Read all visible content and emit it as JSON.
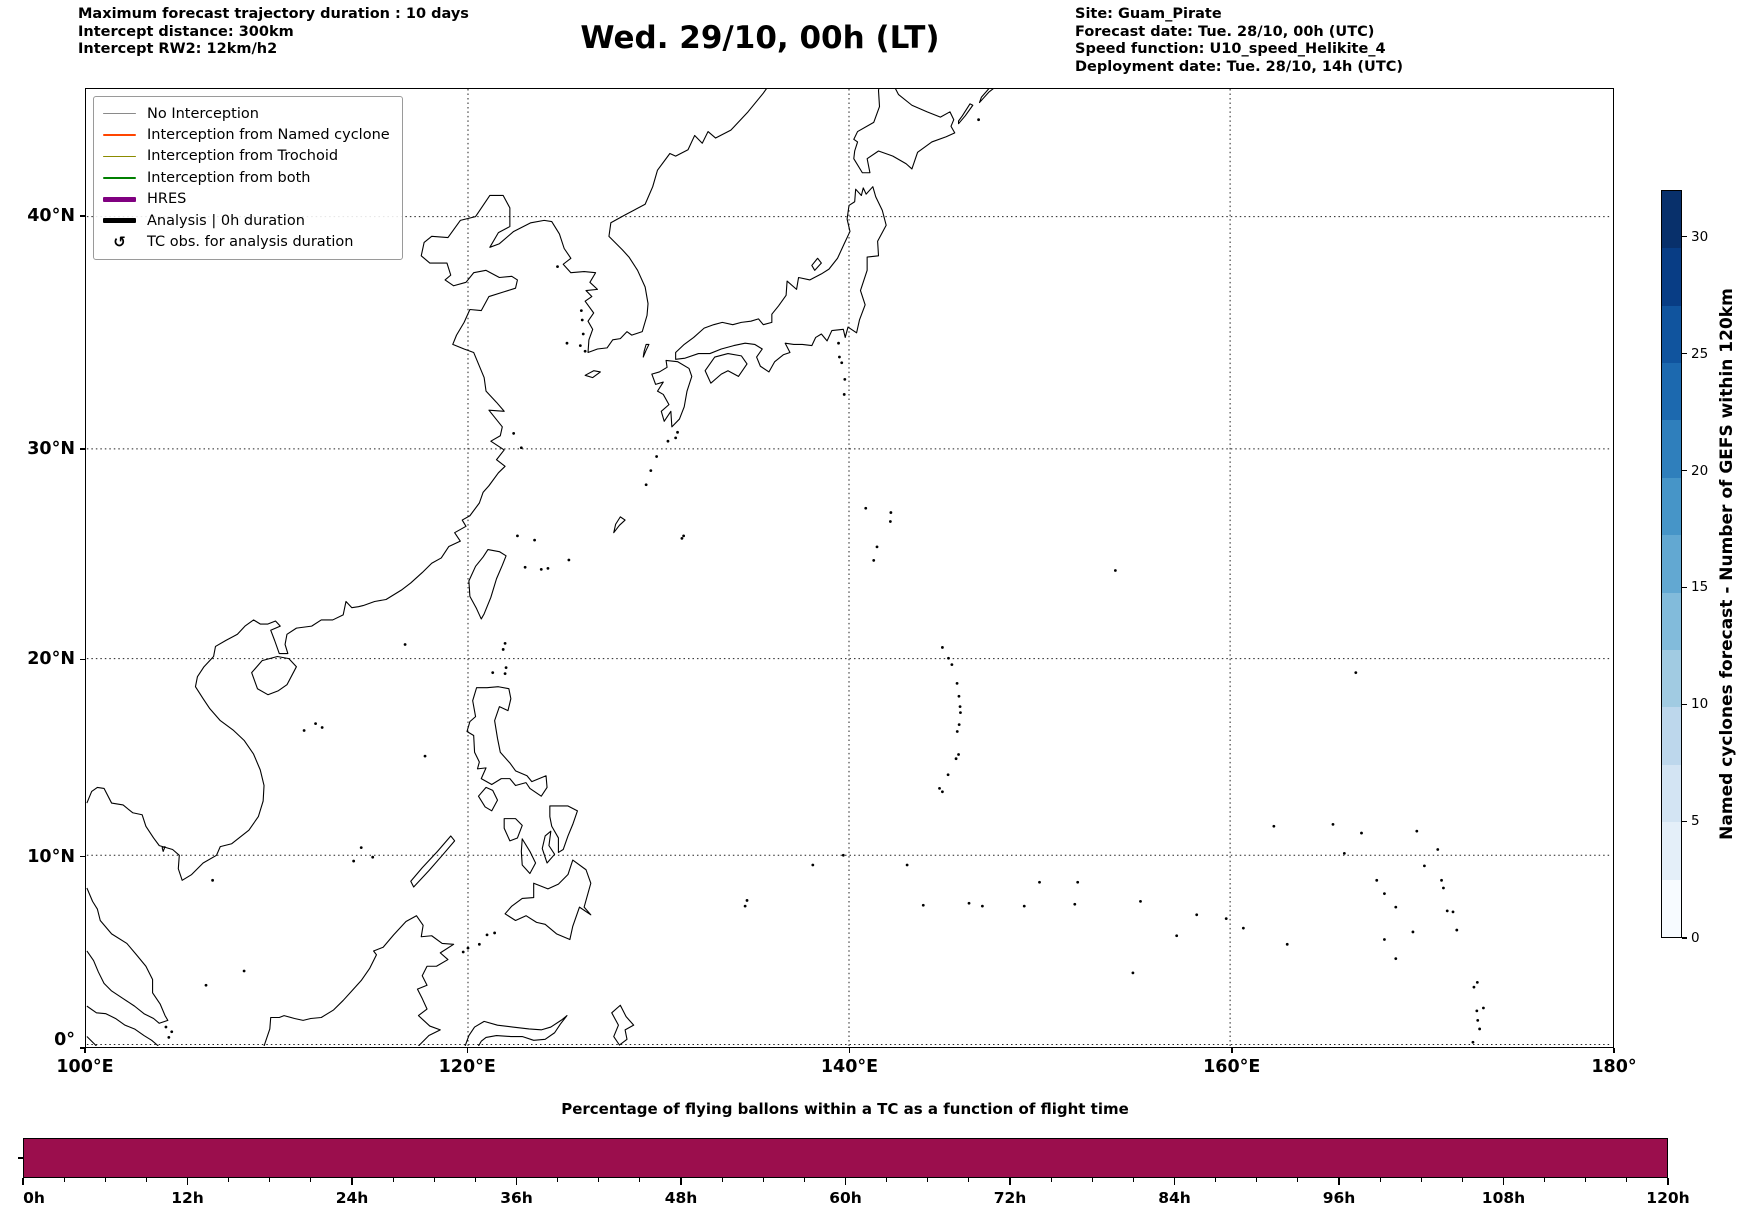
{
  "header": {
    "info_left": {
      "line1": "Maximum forecast trajectory duration : 10 days",
      "line2": "Intercept distance: 300km",
      "line3": "Intercept RW2: 12km/h2"
    },
    "title": "Wed. 29/10, 00h (LT)",
    "info_right": {
      "line1": "Site: Guam_Pirate",
      "line2": "Forecast date: Tue. 28/10, 00h (UTC)",
      "line3": "Speed function: U10_speed_Helikite_4",
      "line4": "Deployment date: Tue. 28/10, 14h (UTC)"
    }
  },
  "map": {
    "legend": {
      "items": [
        {
          "label": "No Interception",
          "sample": "line",
          "color": "#8a8a8a",
          "weight": 1.5
        },
        {
          "label": "Interception from Named cyclone",
          "sample": "line",
          "color": "#ff4500",
          "weight": 1.5
        },
        {
          "label": "Interception from Trochoid",
          "sample": "line",
          "color": "#8b8b00",
          "weight": 1.5
        },
        {
          "label": "Interception from both",
          "sample": "line",
          "color": "#007f00",
          "weight": 1.5
        },
        {
          "label": "HRES",
          "sample": "line",
          "color": "#800080",
          "weight": 5
        },
        {
          "label": "Analysis | 0h duration",
          "sample": "line",
          "color": "#000000",
          "weight": 5
        },
        {
          "label": "TC obs. for analysis duration",
          "sample": "symbol",
          "symbol": "↺",
          "color": "#000000"
        }
      ]
    },
    "y_ticks": [
      {
        "label": "40°N",
        "lat": 40
      },
      {
        "label": "30°N",
        "lat": 30
      },
      {
        "label": "20°N",
        "lat": 20
      },
      {
        "label": "10°N",
        "lat": 10
      },
      {
        "label": "0°",
        "lat": 0
      }
    ],
    "x_ticks": [
      {
        "label": "100°E",
        "lon": 100
      },
      {
        "label": "120°E",
        "lon": 120
      },
      {
        "label": "140°E",
        "lon": 140
      },
      {
        "label": "160°E",
        "lon": 160
      },
      {
        "label": "180°",
        "lon": 180
      }
    ]
  },
  "colorbar": {
    "label": "Named cyclones forecast - Number of GEFS within 120km",
    "vmin": 0,
    "vmax": 32,
    "ticks": [
      {
        "label": "0",
        "value": 0
      },
      {
        "label": "5",
        "value": 5
      },
      {
        "label": "10",
        "value": 10
      },
      {
        "label": "15",
        "value": 15
      },
      {
        "label": "20",
        "value": 20
      },
      {
        "label": "25",
        "value": 25
      },
      {
        "label": "30",
        "value": 30
      }
    ],
    "colors": [
      "#f7fbff",
      "#e4eff9",
      "#d3e4f3",
      "#bdd7ec",
      "#a1cbe2",
      "#82bbdb",
      "#62a8d2",
      "#4695c8",
      "#2f7fbc",
      "#1c69af",
      "#10549e",
      "#083d85",
      "#08306b"
    ]
  },
  "bottom_chart": {
    "title": "Percentage of flying ballons within a TC as a function of flight time",
    "bar_color": "#9b0e4d",
    "duration_hours": 120,
    "minor_tick_hours": 3,
    "ticks": [
      {
        "label": "0h",
        "hours": 0
      },
      {
        "label": "12h",
        "hours": 12
      },
      {
        "label": "24h",
        "hours": 24
      },
      {
        "label": "36h",
        "hours": 36
      },
      {
        "label": "48h",
        "hours": 48
      },
      {
        "label": "60h",
        "hours": 60
      },
      {
        "label": "72h",
        "hours": 72
      },
      {
        "label": "84h",
        "hours": 84
      },
      {
        "label": "96h",
        "hours": 96
      },
      {
        "label": "108h",
        "hours": 108
      },
      {
        "label": "120h",
        "hours": 120
      }
    ]
  },
  "chart_data": [
    {
      "type": "map",
      "title": "Wed. 29/10, 00h (LT)",
      "projection": "mercator",
      "lon_range": [
        100,
        180
      ],
      "lat_range": [
        0,
        45.6
      ],
      "x_tick_labels": [
        "100°E",
        "120°E",
        "140°E",
        "160°E",
        "180°"
      ],
      "y_tick_labels": [
        "0°",
        "10°N",
        "20°N",
        "30°N",
        "40°N"
      ],
      "grid": true,
      "content": "Black coastlines of East Asia and the Western Pacific (China, Korea, Japan, Taiwan, Philippines, Borneo, Vietnam, Pacific island chains incl. Marianas/Guam); no balloon trajectories or cyclone tracks are drawn on the map"
    },
    {
      "type": "heatmap",
      "role": "colorbar-scale",
      "label": "Named cyclones forecast - Number of GEFS within 120km",
      "colormap": "Blues",
      "n_segments": 13,
      "range": [
        0,
        32
      ],
      "tick_values": [
        0,
        5,
        10,
        15,
        20,
        25,
        30
      ]
    },
    {
      "type": "bar",
      "title": "Percentage of flying ballons within a TC as a function of flight time",
      "x": [
        "0h",
        "12h",
        "24h",
        "36h",
        "48h",
        "60h",
        "72h",
        "84h",
        "96h",
        "108h",
        "120h"
      ],
      "xlim_hours": [
        0,
        120
      ],
      "values_note": "single constant full-height maroon bar spanning the whole 0h–120h axis",
      "bar_color": "#9b0e4d"
    }
  ]
}
